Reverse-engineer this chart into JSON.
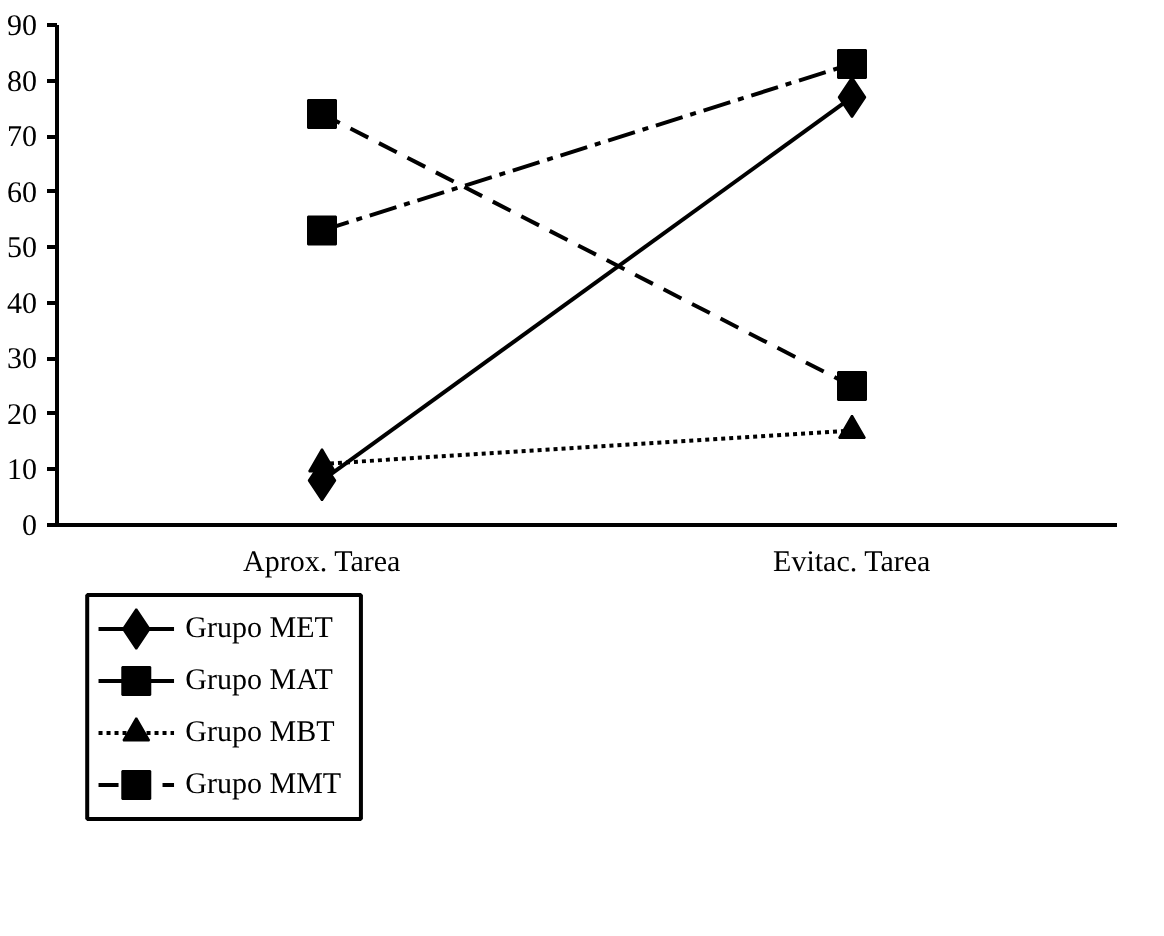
{
  "chart_data": {
    "type": "line",
    "categories": [
      "Aprox. Tarea",
      "Evitac. Tarea"
    ],
    "series": [
      {
        "name": "Grupo MET",
        "color": "#000000",
        "marker": "diamond",
        "line_style": "solid",
        "values": [
          8,
          77
        ]
      },
      {
        "name": "Grupo MAT",
        "color": "#000000",
        "marker": "square",
        "line_style": "dashdot",
        "values": [
          53,
          83
        ]
      },
      {
        "name": "Grupo MBT",
        "color": "#000000",
        "marker": "triangle",
        "line_style": "dotted",
        "values": [
          11,
          17
        ]
      },
      {
        "name": "Grupo MMT",
        "color": "#000000",
        "marker": "square",
        "line_style": "dashed",
        "values": [
          74,
          25
        ]
      }
    ],
    "ylim": [
      0,
      90
    ],
    "yticks": [
      0,
      10,
      20,
      30,
      40,
      50,
      60,
      70,
      80,
      90
    ],
    "grid": false,
    "legend": "bottom left"
  }
}
